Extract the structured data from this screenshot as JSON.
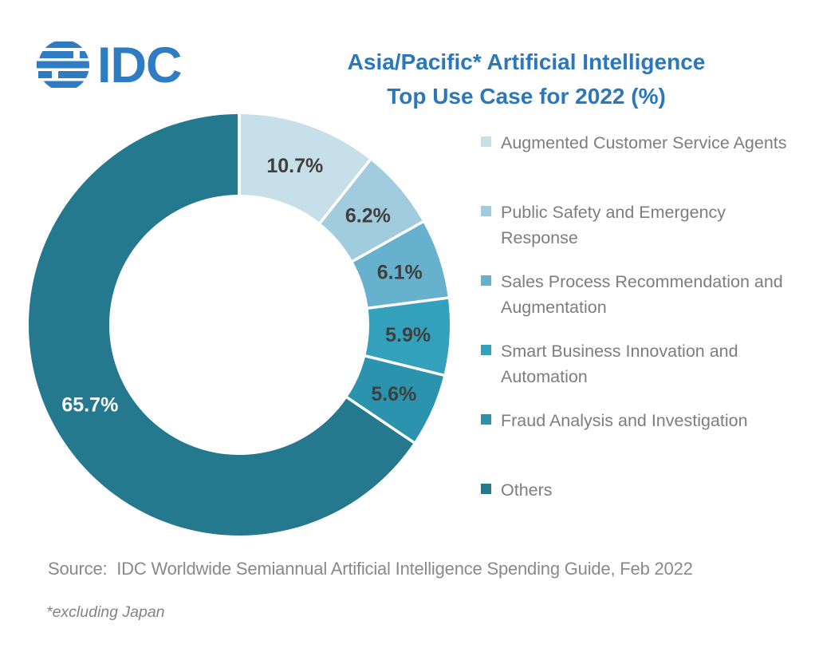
{
  "logo": {
    "text": "IDC",
    "color": "#2F7CC2"
  },
  "title": {
    "line1": "Asia/Pacific* Artificial Intelligence",
    "line2": "Top Use Case for 2022 (%)",
    "color": "#2B77BA"
  },
  "chart_data": {
    "type": "pie",
    "subtype": "donut",
    "title": "Asia/Pacific* Artificial Intelligence Top Use Case for 2022 (%)",
    "unit": "%",
    "legend_position": "right",
    "start_angle_deg": 0,
    "direction": "clockwise",
    "slices": [
      {
        "label": "Augmented Customer Service Agents",
        "value": 10.7,
        "display": "10.7%",
        "color": "#C7DFE9",
        "label_color": "#3F3F3F"
      },
      {
        "label": "Public Safety and Emergency Response",
        "value": 6.2,
        "display": "6.2%",
        "color": "#A1CCDD",
        "label_color": "#3F3F3F"
      },
      {
        "label": "Sales Process Recommendation and Augmentation",
        "value": 6.1,
        "display": "6.1%",
        "color": "#66B2CE",
        "label_color": "#3F3F3F"
      },
      {
        "label": "Smart Business Innovation and Automation",
        "value": 5.9,
        "display": "5.9%",
        "color": "#33A1BC",
        "label_color": "#3F3F3F"
      },
      {
        "label": "Fraud Analysis and Investigation",
        "value": 5.6,
        "display": "5.6%",
        "color": "#2C93AE",
        "label_color": "#3F3F3F"
      },
      {
        "label": "Others",
        "value": 65.7,
        "display": "65.7%",
        "color": "#25798F",
        "label_color": "#FFFFFF"
      }
    ]
  },
  "footer": {
    "source": "Source:  IDC Worldwide Semiannual Artificial Intelligence Spending Guide, Feb 2022",
    "footnote": "*excluding Japan"
  }
}
